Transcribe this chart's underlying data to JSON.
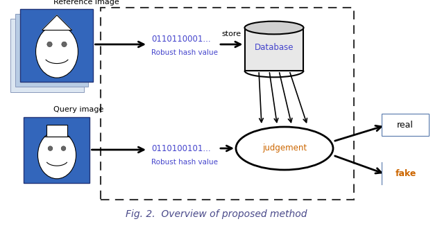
{
  "title": "Fig. 2.  Overview of proposed method",
  "title_fontsize": 11,
  "title_color": "#4a4a8a",
  "bg_color": "#ffffff",
  "ref_label": "Reference image",
  "query_label": "Query image",
  "hash_top": "0110110001...",
  "hash_bottom": "0110100101...",
  "robust_hash": "Robust hash value",
  "store_label": "store",
  "database_label": "Database",
  "judgement_label": "judgement",
  "real_label": "real",
  "fake_label": "fake",
  "hash_color": "#4444cc",
  "judgement_color": "#cc6600",
  "fake_color": "#cc6600",
  "real_color": "#000000",
  "arrow_color": "#000000",
  "box_blue": "#3366bb",
  "box_light1": "#b8cce4",
  "box_light2": "#dce6f1",
  "dashed_border_color": "#333333"
}
